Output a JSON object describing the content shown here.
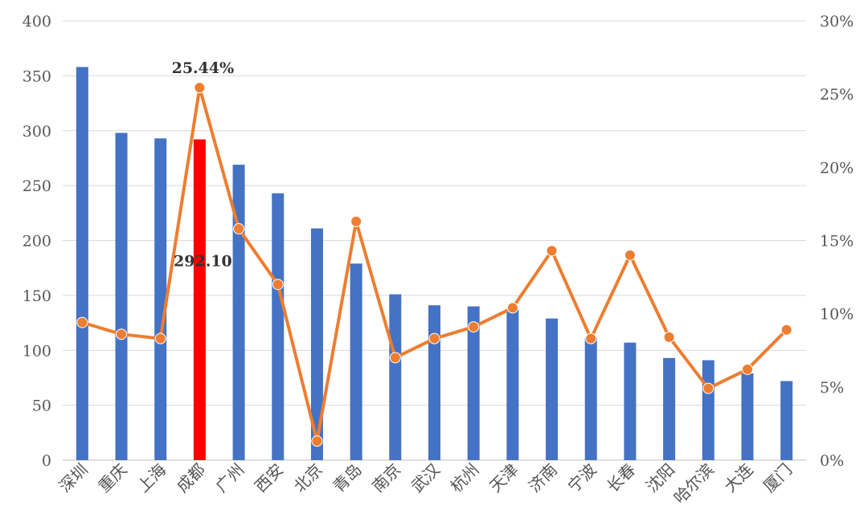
{
  "chart_data": {
    "type": "bar+line",
    "categories": [
      "深圳",
      "重庆",
      "上海",
      "成都",
      "广州",
      "西安",
      "北京",
      "青岛",
      "南京",
      "武汉",
      "杭州",
      "天津",
      "济南",
      "宁波",
      "长春",
      "沈阳",
      "哈尔滨",
      "大连",
      "厦门"
    ],
    "series": [
      {
        "kind": "bar",
        "axis": "left",
        "color": "#4472C4",
        "highlight": {
          "category": "成都",
          "color": "#FF0000"
        },
        "values": [
          358,
          298,
          293,
          292.1,
          269,
          243,
          211,
          179,
          151,
          141,
          140,
          137,
          129,
          111,
          107,
          93,
          91,
          79,
          72
        ]
      },
      {
        "kind": "line",
        "axis": "right",
        "color": "#ED7D31",
        "values": [
          9.4,
          8.6,
          8.3,
          25.44,
          15.8,
          12.0,
          1.3,
          16.3,
          7.0,
          8.3,
          9.1,
          10.4,
          14.3,
          8.3,
          14.0,
          8.4,
          4.9,
          6.2,
          8.9
        ]
      }
    ],
    "yleft": {
      "lim": [
        0,
        400
      ],
      "ticks": [
        "0",
        "50",
        "100",
        "150",
        "200",
        "250",
        "300",
        "350",
        "400"
      ]
    },
    "yright": {
      "lim": [
        0,
        30
      ],
      "ticks": [
        "0%",
        "5%",
        "10%",
        "15%",
        "20%",
        "25%",
        "30%"
      ]
    },
    "annotations": [
      {
        "category": "成都",
        "series": "line",
        "text": "25.44%"
      },
      {
        "category": "成都",
        "series": "bar",
        "text": "292.10"
      }
    ],
    "grid": true
  }
}
